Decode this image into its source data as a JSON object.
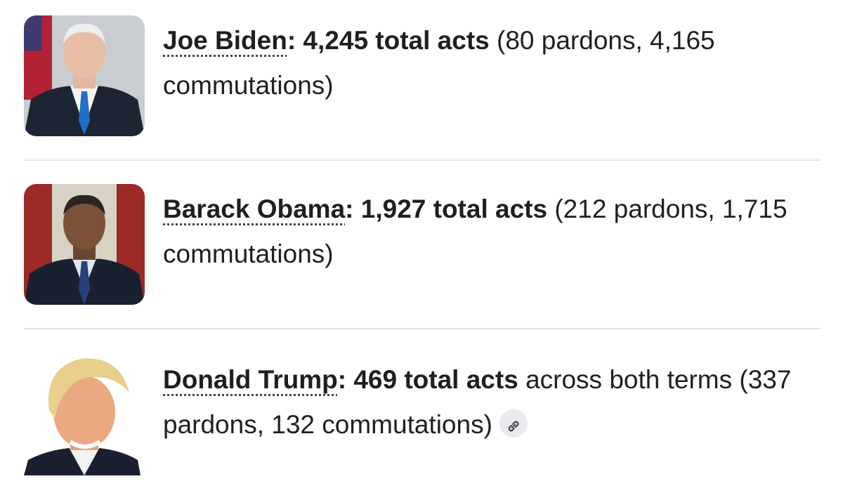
{
  "items": [
    {
      "name": "Joe Biden",
      "summary": ": 4,245 total acts",
      "detail": "(80 pardons, 4,165 commutations)"
    },
    {
      "name": "Barack Obama",
      "summary": ": 1,927 total acts",
      "detail": "(212 pardons, 1,715 commutations)"
    },
    {
      "name": "Donald Trump",
      "summary": ": 469 total acts",
      "detail": "across both terms (337 pardons, 132 commutations)"
    }
  ]
}
